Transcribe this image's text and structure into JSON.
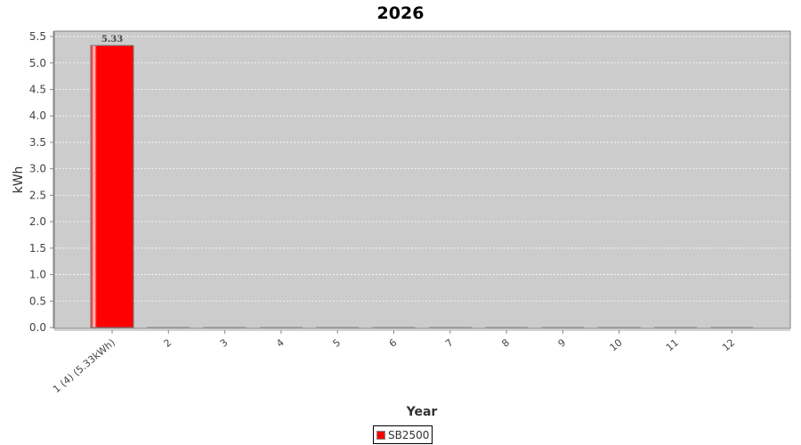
{
  "chart_data": {
    "type": "bar",
    "title": "2026",
    "xlabel": "Year",
    "ylabel": "kWh",
    "categories": [
      "1 (4)  (5.33kWh)",
      "2",
      "3",
      "4",
      "5",
      "6",
      "7",
      "8",
      "9",
      "10",
      "11",
      "12"
    ],
    "series": [
      {
        "name": "SB2500",
        "color": "#ff0000",
        "values": [
          5.33,
          0,
          0,
          0,
          0,
          0,
          0,
          0,
          0,
          0,
          0,
          0
        ]
      }
    ],
    "data_labels": [
      "5.33",
      "",
      "",
      "",
      "",
      "",
      "",
      "",
      "",
      "",
      "",
      ""
    ],
    "ylim": [
      0,
      5.55
    ],
    "yticks": [
      "0.0",
      "0.5",
      "1.0",
      "1.5",
      "2.0",
      "2.5",
      "3.0",
      "3.5",
      "4.0",
      "4.5",
      "5.0",
      "5.5"
    ],
    "grid": true,
    "legend_position": "bottom",
    "plot_background": "#cccccc"
  }
}
